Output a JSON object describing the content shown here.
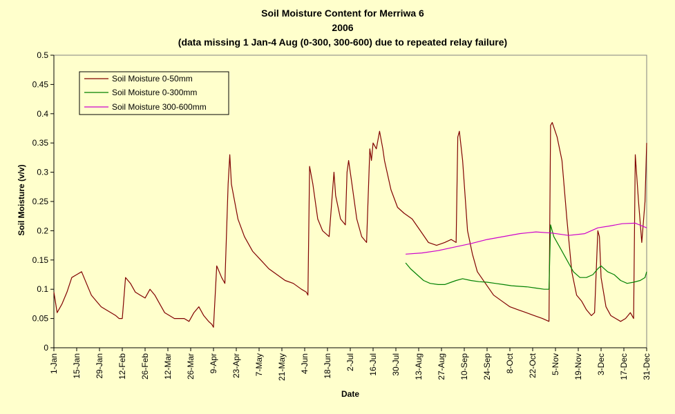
{
  "chart_data": {
    "type": "line",
    "title_lines": [
      "Soil Moisture Content for Merriwa 6",
      "2006",
      "(data missing 1 Jan-4 Aug (0-300, 300-600) due to repeated relay failure)"
    ],
    "xlabel": "Date",
    "ylabel": "Soil Moisture (v/v)",
    "ylim": [
      0,
      0.5
    ],
    "y_ticks": [
      "0",
      "0.05",
      "0.1",
      "0.15",
      "0.2",
      "0.25",
      "0.3",
      "0.35",
      "0.4",
      "0.45",
      "0.5"
    ],
    "x_tick_labels": [
      "1-Jan",
      "15-Jan",
      "29-Jan",
      "12-Feb",
      "26-Feb",
      "12-Mar",
      "26-Mar",
      "9-Apr",
      "23-Apr",
      "7-May",
      "21-May",
      "4-Jun",
      "18-Jun",
      "2-Jul",
      "16-Jul",
      "30-Jul",
      "13-Aug",
      "27-Aug",
      "10-Sep",
      "24-Sep",
      "8-Oct",
      "22-Oct",
      "5-Nov",
      "19-Nov",
      "3-Dec",
      "17-Dec",
      "31-Dec"
    ],
    "x_note": "x values are dates in 2006 (day of year)",
    "grid": false,
    "legend": "top-left",
    "series": [
      {
        "name": "Soil Moisture 0-50mm",
        "color": "#800000",
        "x": [
          "2006-01-01",
          "2006-01-03",
          "2006-01-06",
          "2006-01-09",
          "2006-01-12",
          "2006-01-15",
          "2006-01-18",
          "2006-01-21",
          "2006-01-24",
          "2006-01-27",
          "2006-01-30",
          "2006-02-02",
          "2006-02-05",
          "2006-02-08",
          "2006-02-10",
          "2006-02-12",
          "2006-02-14",
          "2006-02-17",
          "2006-02-20",
          "2006-02-23",
          "2006-02-26",
          "2006-03-01",
          "2006-03-04",
          "2006-03-07",
          "2006-03-10",
          "2006-03-13",
          "2006-03-16",
          "2006-03-19",
          "2006-03-22",
          "2006-03-25",
          "2006-03-28",
          "2006-03-31",
          "2006-04-03",
          "2006-04-06",
          "2006-04-08",
          "2006-04-09",
          "2006-04-11",
          "2006-04-14",
          "2006-04-16",
          "2006-04-18",
          "2006-04-19",
          "2006-04-20",
          "2006-04-24",
          "2006-04-28",
          "2006-05-03",
          "2006-05-08",
          "2006-05-13",
          "2006-05-18",
          "2006-05-23",
          "2006-05-28",
          "2006-06-02",
          "2006-06-05",
          "2006-06-06",
          "2006-06-07",
          "2006-06-09",
          "2006-06-12",
          "2006-06-15",
          "2006-06-19",
          "2006-06-22",
          "2006-06-23",
          "2006-06-26",
          "2006-06-29",
          "2006-06-30",
          "2006-07-01",
          "2006-07-03",
          "2006-07-06",
          "2006-07-09",
          "2006-07-12",
          "2006-07-14",
          "2006-07-15",
          "2006-07-16",
          "2006-07-18",
          "2006-07-20",
          "2006-07-22",
          "2006-07-23",
          "2006-07-27",
          "2006-07-31",
          "2006-08-04",
          "2006-08-09",
          "2006-08-14",
          "2006-08-19",
          "2006-08-24",
          "2006-08-29",
          "2006-09-02",
          "2006-09-05",
          "2006-09-06",
          "2006-09-07",
          "2006-09-09",
          "2006-09-12",
          "2006-09-15",
          "2006-09-18",
          "2006-09-23",
          "2006-09-28",
          "2006-10-03",
          "2006-10-08",
          "2006-10-13",
          "2006-10-18",
          "2006-10-23",
          "2006-10-28",
          "2006-11-01",
          "2006-11-02",
          "2006-11-03",
          "2006-11-06",
          "2006-11-09",
          "2006-11-12",
          "2006-11-15",
          "2006-11-18",
          "2006-11-21",
          "2006-11-24",
          "2006-11-27",
          "2006-11-29",
          "2006-12-01",
          "2006-12-02",
          "2006-12-03",
          "2006-12-06",
          "2006-12-09",
          "2006-12-12",
          "2006-12-15",
          "2006-12-18",
          "2006-12-21",
          "2006-12-23",
          "2006-12-24",
          "2006-12-26",
          "2006-12-28",
          "2006-12-30",
          "2006-12-31"
        ],
        "y": [
          0.095,
          0.06,
          0.075,
          0.095,
          0.12,
          0.125,
          0.13,
          0.11,
          0.09,
          0.08,
          0.07,
          0.065,
          0.06,
          0.055,
          0.05,
          0.05,
          0.12,
          0.11,
          0.095,
          0.09,
          0.085,
          0.1,
          0.09,
          0.075,
          0.06,
          0.055,
          0.05,
          0.05,
          0.05,
          0.045,
          0.06,
          0.07,
          0.055,
          0.045,
          0.04,
          0.035,
          0.14,
          0.12,
          0.11,
          0.28,
          0.33,
          0.28,
          0.22,
          0.19,
          0.165,
          0.15,
          0.135,
          0.125,
          0.115,
          0.11,
          0.1,
          0.095,
          0.09,
          0.31,
          0.28,
          0.22,
          0.2,
          0.19,
          0.3,
          0.26,
          0.22,
          0.21,
          0.3,
          0.32,
          0.28,
          0.22,
          0.19,
          0.18,
          0.34,
          0.32,
          0.35,
          0.34,
          0.37,
          0.34,
          0.32,
          0.27,
          0.24,
          0.23,
          0.22,
          0.2,
          0.18,
          0.175,
          0.18,
          0.185,
          0.18,
          0.36,
          0.37,
          0.32,
          0.2,
          0.16,
          0.13,
          0.11,
          0.09,
          0.08,
          0.07,
          0.065,
          0.06,
          0.055,
          0.05,
          0.045,
          0.38,
          0.385,
          0.36,
          0.32,
          0.22,
          0.13,
          0.09,
          0.08,
          0.065,
          0.055,
          0.06,
          0.2,
          0.19,
          0.12,
          0.07,
          0.055,
          0.05,
          0.045,
          0.05,
          0.06,
          0.05,
          0.33,
          0.25,
          0.18,
          0.25,
          0.35
        ]
      },
      {
        "name": "Soil Moisture 0-300mm",
        "color": "#008000",
        "x": [
          "2006-08-05",
          "2006-08-08",
          "2006-08-12",
          "2006-08-16",
          "2006-08-20",
          "2006-08-25",
          "2006-08-29",
          "2006-09-02",
          "2006-09-05",
          "2006-09-09",
          "2006-09-14",
          "2006-09-19",
          "2006-09-24",
          "2006-09-29",
          "2006-10-04",
          "2006-10-09",
          "2006-10-14",
          "2006-10-19",
          "2006-10-24",
          "2006-10-29",
          "2006-11-01",
          "2006-11-02",
          "2006-11-04",
          "2006-11-08",
          "2006-11-12",
          "2006-11-16",
          "2006-11-20",
          "2006-11-24",
          "2006-11-28",
          "2006-12-01",
          "2006-12-03",
          "2006-12-07",
          "2006-12-11",
          "2006-12-15",
          "2006-12-19",
          "2006-12-23",
          "2006-12-27",
          "2006-12-30",
          "2006-12-31"
        ],
        "y": [
          0.145,
          0.135,
          0.125,
          0.115,
          0.11,
          0.108,
          0.108,
          0.112,
          0.115,
          0.118,
          0.115,
          0.113,
          0.112,
          0.11,
          0.108,
          0.106,
          0.105,
          0.104,
          0.102,
          0.1,
          0.1,
          0.21,
          0.19,
          0.17,
          0.15,
          0.13,
          0.12,
          0.12,
          0.125,
          0.135,
          0.14,
          0.13,
          0.125,
          0.115,
          0.11,
          0.112,
          0.115,
          0.12,
          0.13
        ]
      },
      {
        "name": "Soil Moisture 300-600mm",
        "color": "#cc00cc",
        "x": [
          "2006-08-05",
          "2006-08-15",
          "2006-08-25",
          "2006-09-04",
          "2006-09-14",
          "2006-09-24",
          "2006-10-04",
          "2006-10-14",
          "2006-10-24",
          "2006-11-03",
          "2006-11-13",
          "2006-11-23",
          "2006-12-01",
          "2006-12-08",
          "2006-12-16",
          "2006-12-24",
          "2006-12-31"
        ],
        "y": [
          0.16,
          0.162,
          0.166,
          0.172,
          0.178,
          0.185,
          0.19,
          0.195,
          0.198,
          0.196,
          0.192,
          0.195,
          0.205,
          0.208,
          0.212,
          0.213,
          0.205
        ]
      }
    ]
  }
}
